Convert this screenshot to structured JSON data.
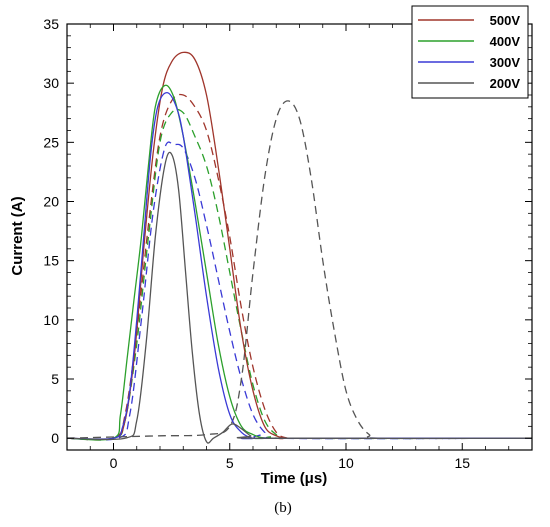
{
  "chart_data": {
    "type": "line",
    "title": "",
    "xlabel": "Time (μs)",
    "ylabel": "Current (A)",
    "panel_label": "(b)",
    "xlim": [
      -2,
      18
    ],
    "ylim": [
      -1,
      35
    ],
    "xticks": [
      0,
      5,
      10,
      15
    ],
    "yticks": [
      0,
      5,
      10,
      15,
      20,
      25,
      30,
      35
    ],
    "grid": false,
    "legend_position": "top-right",
    "legend": [
      {
        "label": "500V",
        "color": "#a0362c"
      },
      {
        "label": "400V",
        "color": "#2ca02c"
      },
      {
        "label": "300V",
        "color": "#3a3ad6"
      },
      {
        "label": "200V",
        "color": "#555555"
      }
    ],
    "series": [
      {
        "name": "500V",
        "style": "solid",
        "color": "#a0362c",
        "x": [
          -2,
          0,
          0.5,
          0.9,
          1.3,
          1.7,
          2.1,
          2.5,
          3.0,
          3.5,
          4.0,
          4.5,
          5.0,
          5.5,
          6.0,
          6.5,
          7.0,
          7.5,
          8.0,
          18
        ],
        "y": [
          0,
          0,
          1.5,
          7,
          16,
          24,
          29.5,
          31.8,
          32.6,
          32.0,
          29,
          23,
          16,
          9,
          4,
          1,
          0.2,
          0,
          0,
          0
        ]
      },
      {
        "name": "400V",
        "style": "solid",
        "color": "#2ca02c",
        "x": [
          -2,
          0,
          0.3,
          0.6,
          0.9,
          1.2,
          1.5,
          1.8,
          2.2,
          2.6,
          3.0,
          3.5,
          4.0,
          4.5,
          5.0,
          5.5,
          6.0,
          6.5,
          7.0,
          18
        ],
        "y": [
          0,
          0,
          2,
          7,
          12,
          17,
          23,
          28,
          29.8,
          28.8,
          25.5,
          20,
          14,
          8,
          3.5,
          1,
          0.3,
          0,
          0,
          0
        ]
      },
      {
        "name": "300V",
        "style": "solid",
        "color": "#3a3ad6",
        "x": [
          -2,
          0,
          0.4,
          0.7,
          1.0,
          1.3,
          1.6,
          1.9,
          2.3,
          2.7,
          3.0,
          3.5,
          4.0,
          4.5,
          5.0,
          5.5,
          6.0,
          6.5,
          18
        ],
        "y": [
          0,
          0,
          1,
          4,
          10,
          17,
          24,
          28,
          29.2,
          28,
          25.5,
          19,
          12,
          6,
          2,
          0.5,
          0,
          0,
          0
        ]
      },
      {
        "name": "200V",
        "style": "solid",
        "color": "#555555",
        "x": [
          -2,
          0.5,
          1.0,
          1.4,
          1.8,
          2.2,
          2.5,
          2.8,
          3.1,
          3.4,
          3.7,
          4.0,
          4.3,
          4.7,
          5.1,
          5.5,
          5.9,
          6.3,
          18
        ],
        "y": [
          0,
          0,
          1.5,
          8,
          17,
          23,
          24,
          21,
          14,
          7,
          2,
          -0.3,
          0,
          0.5,
          1.2,
          0.8,
          0.2,
          0,
          0
        ]
      },
      {
        "name": "",
        "style": "dashed",
        "color": "#a0362c",
        "x": [
          -2,
          0,
          0.5,
          1.0,
          1.5,
          2.0,
          2.5,
          3.0,
          3.5,
          4.0,
          4.5,
          5.0,
          5.5,
          6.0,
          6.5,
          7.0,
          7.5,
          8.0,
          18
        ],
        "y": [
          0,
          0,
          2,
          9,
          18,
          25.5,
          28.5,
          29,
          28,
          26,
          22,
          17,
          11,
          6,
          2.5,
          0.5,
          0,
          0,
          0
        ]
      },
      {
        "name": "",
        "style": "dashed",
        "color": "#2ca02c",
        "x": [
          -2,
          0,
          0.5,
          1.0,
          1.5,
          2.0,
          2.5,
          3.0,
          3.5,
          4.0,
          4.5,
          5.0,
          5.5,
          6.0,
          6.5,
          7.0,
          7.5,
          18
        ],
        "y": [
          0,
          0,
          1.5,
          8,
          17,
          25,
          27.5,
          27.5,
          25.5,
          23,
          19,
          14,
          9,
          4.5,
          1.5,
          0.3,
          0,
          0
        ]
      },
      {
        "name": "",
        "style": "dashed",
        "color": "#3a3ad6",
        "x": [
          -2,
          0.2,
          0.7,
          1.2,
          1.7,
          2.2,
          2.6,
          3.0,
          3.5,
          4.0,
          4.5,
          5.0,
          5.5,
          6.0,
          6.5,
          7.0,
          18
        ],
        "y": [
          0,
          0,
          2,
          10,
          19,
          24.5,
          24.8,
          24.5,
          22,
          18,
          13.5,
          9,
          5,
          2,
          0.5,
          0,
          0
        ]
      },
      {
        "name": "",
        "style": "dashed",
        "color": "#555555",
        "x": [
          -2,
          0,
          2,
          4,
          5,
          5.5,
          6.0,
          6.5,
          7.0,
          7.5,
          8.0,
          8.5,
          9.0,
          9.5,
          10.0,
          10.5,
          11.0,
          11.5,
          18
        ],
        "y": [
          0,
          0.1,
          0.2,
          0.3,
          1,
          5,
          14,
          22,
          27,
          28.5,
          27,
          22,
          15,
          9,
          4,
          1.5,
          0.3,
          0,
          0
        ]
      }
    ]
  }
}
